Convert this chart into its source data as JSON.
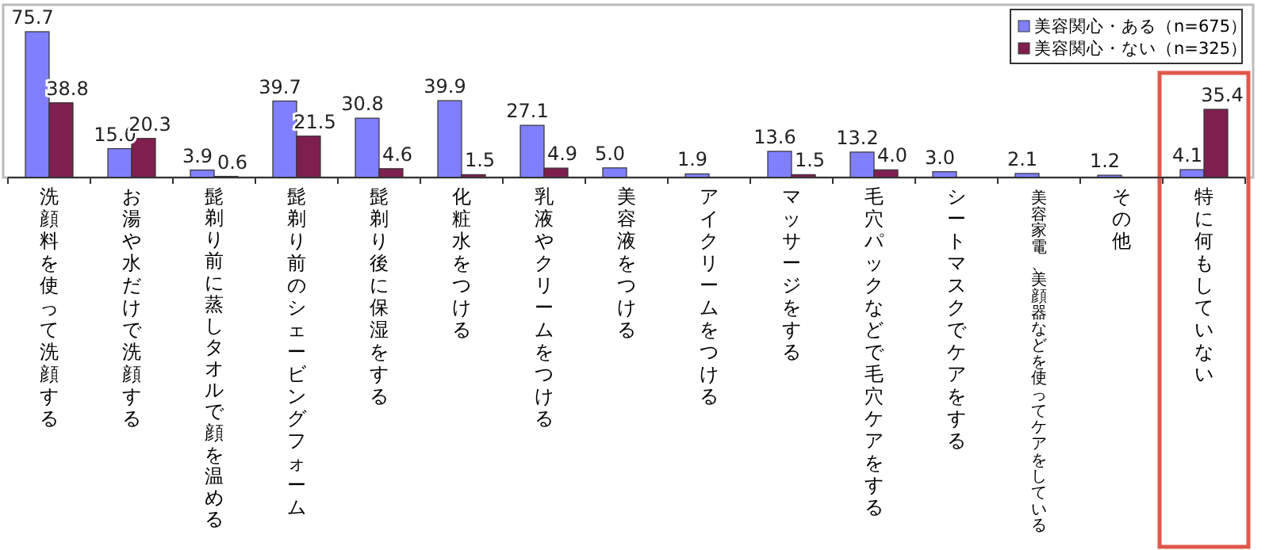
{
  "chart_data": {
    "type": "bar",
    "categories": [
      "洗顔料を使って洗顔する",
      "お湯や水だけで洗顔する",
      "髭剃り前に蒸しタオルで顔を温める",
      "髭剃り前のシェービングフォーム",
      "髭剃り後に保湿をする",
      "化粧水をつける",
      "乳液やクリームをつける",
      "美容液をつける",
      "アイクリームをつける",
      "マッサージをする",
      "毛穴パックなどで毛穴ケアをする",
      "シートマスクでケアをする",
      "美容家電、美顔器などを使ってケアをしている",
      "その他",
      "特に何もしていない"
    ],
    "series": [
      {
        "name": "美容関心・ある（n=675）",
        "color": "#8080ff",
        "values": [
          75.7,
          15.0,
          3.9,
          39.7,
          30.8,
          39.9,
          27.1,
          5.0,
          1.9,
          13.6,
          13.2,
          3.0,
          2.1,
          1.2,
          4.1
        ],
        "value_labels": [
          "75.7",
          "15.0",
          "3.9",
          "39.7",
          "30.8",
          "39.9",
          "27.1",
          "5.0",
          "1.9",
          "13.6",
          "13.2",
          "3.0",
          "2.1",
          "1.2",
          "4.1"
        ]
      },
      {
        "name": "美容関心・ない（n=325）",
        "color": "#7f1f4f",
        "values": [
          38.8,
          20.3,
          0.6,
          21.5,
          4.6,
          1.5,
          4.9,
          null,
          null,
          1.5,
          4.0,
          null,
          null,
          null,
          35.4
        ],
        "value_labels": [
          "38.8",
          "20.3",
          "0.6",
          "21.5",
          "4.6",
          "1.5",
          "4.9",
          null,
          null,
          "1.5",
          "4.0",
          null,
          null,
          null,
          "35.4"
        ]
      }
    ],
    "legend": "top right"
  }
}
